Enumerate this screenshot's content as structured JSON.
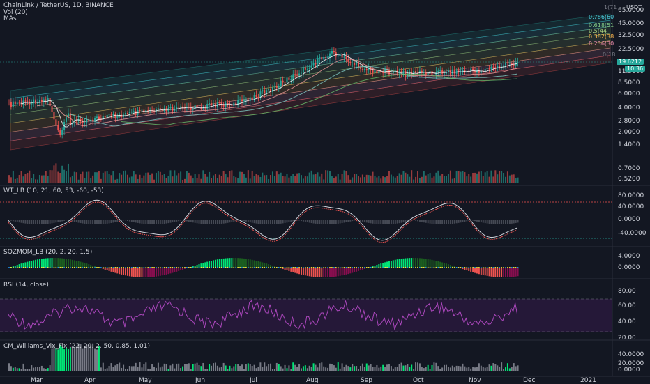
{
  "header": {
    "symbol": "ChainLink / TetherUS, 1D, BINANCE",
    "vol": "Vol (20)",
    "mas": "MAs"
  },
  "axis_top_label": "USDT",
  "price_axis": [
    "65.0000",
    "45.0000",
    "32.5000",
    "22.5000",
    "11.5000",
    "8.5000",
    "6.0000",
    "4.0000",
    "2.8000",
    "2.0000",
    "1.4000",
    "0.7000",
    "0.5200"
  ],
  "fib_labels": [
    "1(71",
    "0.786(60",
    "0.618(51",
    "0.5(44",
    "0.382(38",
    "0.236(30",
    "0(18"
  ],
  "price_tags": {
    "last": "19.6212",
    "countdown": "10:36"
  },
  "panes": {
    "wt": {
      "title": "WT_LB (10, 21, 60, 53, -60, -53)",
      "axis": [
        "80.0000",
        "40.0000",
        "0.0000",
        "-40.0000"
      ]
    },
    "sqz": {
      "title": "SQZMOM_LB (20, 2, 20, 1.5)",
      "axis": [
        "4.0000",
        "0.0000"
      ]
    },
    "rsi": {
      "title": "RSI (14, close)",
      "axis": [
        "80.00",
        "60.00",
        "40.00",
        "20.00"
      ]
    },
    "cmw": {
      "title": "CM_Williams_Vix_Fix (22, 20, 2, 50, 0.85, 1.01)",
      "axis": [
        "40.0000",
        "20.0000",
        "0.0000"
      ]
    }
  },
  "time_axis": [
    "Mar",
    "Apr",
    "May",
    "Jun",
    "Jul",
    "Aug",
    "Sep",
    "Oct",
    "Nov",
    "Dec",
    "2021"
  ],
  "colors": {
    "bg": "#131722",
    "up": "#26a69a",
    "down": "#ef5350",
    "text": "#d1d4dc",
    "grid": "#1e2230",
    "rsi": "#7b1fa2",
    "lime": "#00e676"
  }
}
